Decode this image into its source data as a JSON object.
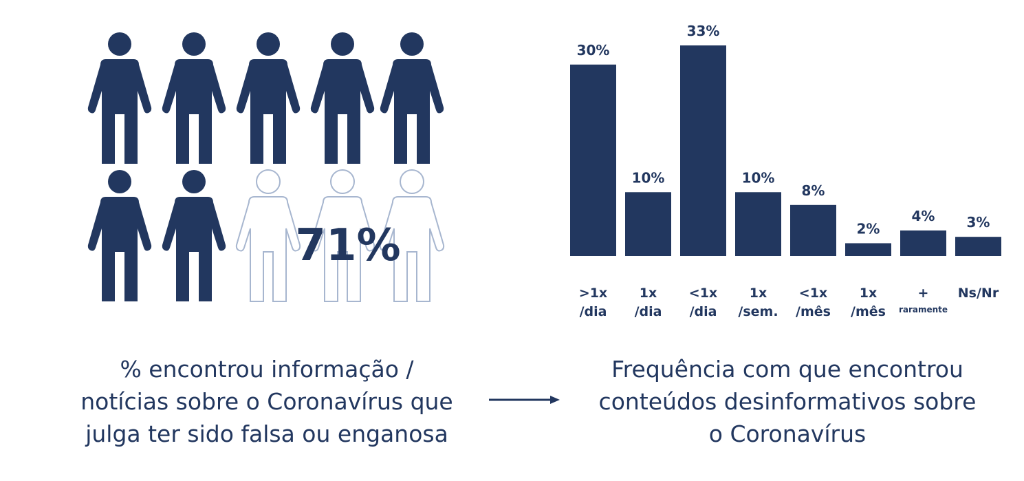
{
  "colors": {
    "primary": "#22375f",
    "outline": "#a7b6cf"
  },
  "icons": {
    "person": "person-icon",
    "arrow": "arrow-right-icon"
  },
  "pictogram": {
    "value_label": "71%",
    "total": 10,
    "filled": 7
  },
  "left_caption": {
    "lines": [
      "% encontrou informação /",
      "notícias sobre o Coronavírus que",
      "julga ter sido falsa ou enganosa"
    ]
  },
  "right_caption": {
    "lines": [
      "Frequência com que encontrou",
      "conteúdos desinformativos sobre",
      "o Coronavírus"
    ]
  },
  "chart_data": {
    "type": "bar",
    "categories": [
      [
        ">1x",
        "/dia"
      ],
      [
        "1x",
        "/dia"
      ],
      [
        "<1x",
        "/dia"
      ],
      [
        "1x",
        "/sem."
      ],
      [
        "<1x",
        "/mês"
      ],
      [
        "1x",
        "/mês"
      ],
      [
        "+",
        "raramente"
      ],
      [
        "Ns/Nr"
      ]
    ],
    "values": [
      30,
      10,
      33,
      10,
      8,
      2,
      4,
      3
    ],
    "data_labels": [
      "30%",
      "10%",
      "33%",
      "10%",
      "8%",
      "2%",
      "4%",
      "3%"
    ],
    "ylim": [
      0,
      33
    ],
    "grid": false,
    "legend": "none"
  }
}
